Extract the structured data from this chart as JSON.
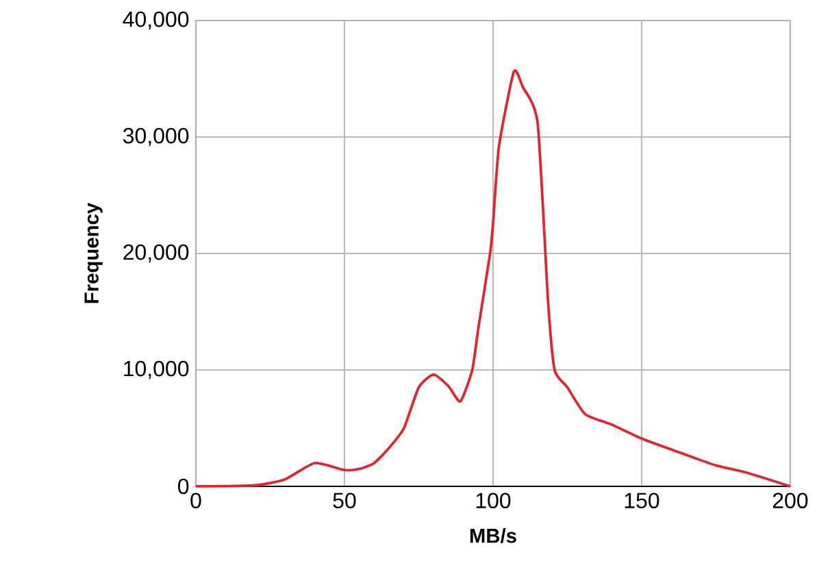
{
  "chart_data": {
    "type": "line",
    "xlabel": "MB/s",
    "ylabel": "Frequency",
    "color": "#e8202a",
    "grid": true,
    "x": [
      0,
      20,
      30,
      40,
      50,
      55,
      60,
      65,
      70,
      75,
      80,
      85,
      89,
      93,
      95,
      99,
      100,
      102,
      107,
      110,
      115,
      118.5,
      120.7,
      125,
      131,
      140,
      150,
      165,
      175,
      185,
      200
    ],
    "values": [
      0,
      100,
      600,
      2000,
      1400,
      1500,
      2000,
      3300,
      5000,
      8500,
      9600,
      8600,
      7300,
      10000,
      13500,
      20000,
      22600,
      29200,
      35600,
      34300,
      31200,
      15900,
      10000,
      8500,
      6200,
      5300,
      4100,
      2700,
      1800,
      1200,
      0
    ],
    "xlim": [
      0,
      200
    ],
    "xticks": [
      0,
      50,
      100,
      150,
      200
    ],
    "ylim": [
      0,
      40000
    ],
    "yticks": [
      {
        "value": 0,
        "label": "0"
      },
      {
        "value": 10000,
        "label": "10,000"
      },
      {
        "value": 20000,
        "label": "20,000"
      },
      {
        "value": 30000,
        "label": "30,000"
      },
      {
        "value": 40000,
        "label": "40,000"
      }
    ]
  }
}
